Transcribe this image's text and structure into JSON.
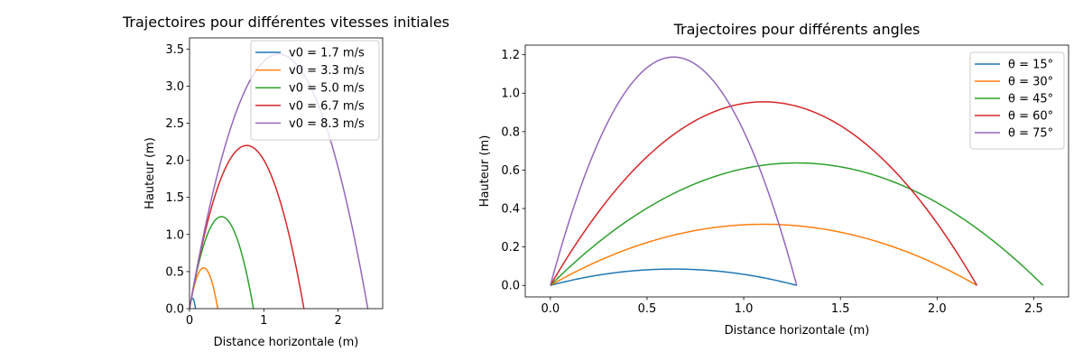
{
  "chart_data": [
    {
      "type": "line",
      "title": "Trajectoires pour différentes vitesses initiales",
      "xlabel": "Distance horizontale (m)",
      "ylabel": "Hauteur (m)",
      "xlim": [
        0,
        2.6
      ],
      "ylim": [
        0,
        3.65
      ],
      "xticks": [
        0,
        1,
        2
      ],
      "xtick_labels": [
        "0",
        "1",
        "2"
      ],
      "yticks": [
        0,
        0.5,
        1,
        1.5,
        2,
        2.5,
        3,
        3.5
      ],
      "ytick_labels": [
        "0.0",
        "0.5",
        "1.0",
        "1.5",
        "2.0",
        "2.5",
        "3.0",
        "3.5"
      ],
      "grid": false,
      "legend_position": "top-right",
      "series": [
        {
          "name": "v0 = 1.7 m/s",
          "color": "#1f77b4",
          "apex_x": 0.04,
          "apex_y": 0.14,
          "range": 0.09
        },
        {
          "name": "v0 = 3.3 m/s",
          "color": "#ff7f0e",
          "apex_x": 0.19,
          "apex_y": 0.55,
          "range": 0.39
        },
        {
          "name": "v0 = 5.0 m/s",
          "color": "#2ca02c",
          "apex_x": 0.43,
          "apex_y": 1.24,
          "range": 0.87
        },
        {
          "name": "v0 = 6.7 m/s",
          "color": "#d62728",
          "apex_x": 0.77,
          "apex_y": 2.2,
          "range": 1.55
        },
        {
          "name": "v0 = 8.3 m/s",
          "color": "#9467bd",
          "apex_x": 1.2,
          "apex_y": 3.43,
          "range": 2.42
        }
      ]
    },
    {
      "type": "line",
      "title": "Trajectoires pour différents angles",
      "xlabel": "Distance horizontale (m)",
      "ylabel": "Hauteur (m)",
      "xlim": [
        -0.13,
        2.68
      ],
      "ylim": [
        -0.06,
        1.25
      ],
      "xticks": [
        0,
        0.5,
        1,
        1.5,
        2,
        2.5
      ],
      "xtick_labels": [
        "0.0",
        "0.5",
        "1.0",
        "1.5",
        "2.0",
        "2.5"
      ],
      "yticks": [
        0,
        0.2,
        0.4,
        0.6,
        0.8,
        1,
        1.2
      ],
      "ytick_labels": [
        "0.0",
        "0.2",
        "0.4",
        "0.6",
        "0.8",
        "1.0",
        "1.2"
      ],
      "grid": false,
      "legend_position": "top-right",
      "series": [
        {
          "name": "θ = 15°",
          "color": "#1f77b4",
          "apex_x": 0.637,
          "apex_y": 0.085,
          "range": 1.274
        },
        {
          "name": "θ = 30°",
          "color": "#ff7f0e",
          "apex_x": 1.103,
          "apex_y": 0.318,
          "range": 2.206
        },
        {
          "name": "θ = 45°",
          "color": "#2ca02c",
          "apex_x": 1.274,
          "apex_y": 0.637,
          "range": 2.548
        },
        {
          "name": "θ = 60°",
          "color": "#d62728",
          "apex_x": 1.103,
          "apex_y": 0.955,
          "range": 2.206
        },
        {
          "name": "θ = 75°",
          "color": "#9467bd",
          "apex_x": 0.637,
          "apex_y": 1.188,
          "range": 1.274
        }
      ]
    }
  ]
}
